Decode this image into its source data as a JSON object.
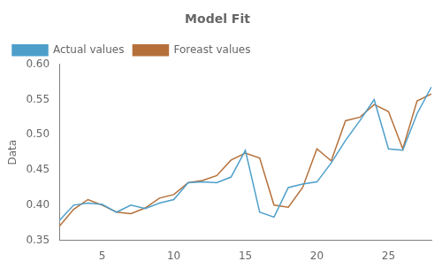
{
  "chart_data": {
    "type": "line",
    "title": "Model Fit",
    "ylabel": "Data",
    "x": [
      2,
      3,
      4,
      5,
      6,
      7,
      8,
      9,
      10,
      11,
      12,
      13,
      14,
      15,
      16,
      17,
      18,
      19,
      20,
      21,
      22,
      23,
      24,
      25,
      26,
      27,
      28
    ],
    "series": [
      {
        "name": "Actual values",
        "color": "#4d9fca",
        "values": [
          0.378,
          0.4,
          0.403,
          0.401,
          0.39,
          0.4,
          0.395,
          0.403,
          0.408,
          0.432,
          0.433,
          0.432,
          0.44,
          0.478,
          0.39,
          0.383,
          0.425,
          0.43,
          0.433,
          0.46,
          0.492,
          0.52,
          0.55,
          0.48,
          0.478,
          0.53,
          0.568
        ]
      },
      {
        "name": "Foreast values",
        "color": "#b5703a",
        "values": [
          0.37,
          0.394,
          0.408,
          0.4,
          0.39,
          0.388,
          0.396,
          0.41,
          0.415,
          0.432,
          0.435,
          0.442,
          0.464,
          0.474,
          0.467,
          0.4,
          0.397,
          0.425,
          0.48,
          0.463,
          0.52,
          0.525,
          0.543,
          0.533,
          0.48,
          0.548,
          0.558
        ]
      }
    ],
    "xlim": [
      2,
      28
    ],
    "xticks": [
      5,
      10,
      15,
      20,
      25
    ],
    "ylim": [
      0.35,
      0.6
    ],
    "yticks": [
      0.35,
      {
        "value": 0.4,
        "label": "0.40"
      },
      0.45,
      {
        "value": 0.5,
        "label": "0.50"
      },
      0.55,
      {
        "value": 0.6,
        "label": "0.60"
      }
    ],
    "grid": false,
    "legend": "upper left"
  }
}
